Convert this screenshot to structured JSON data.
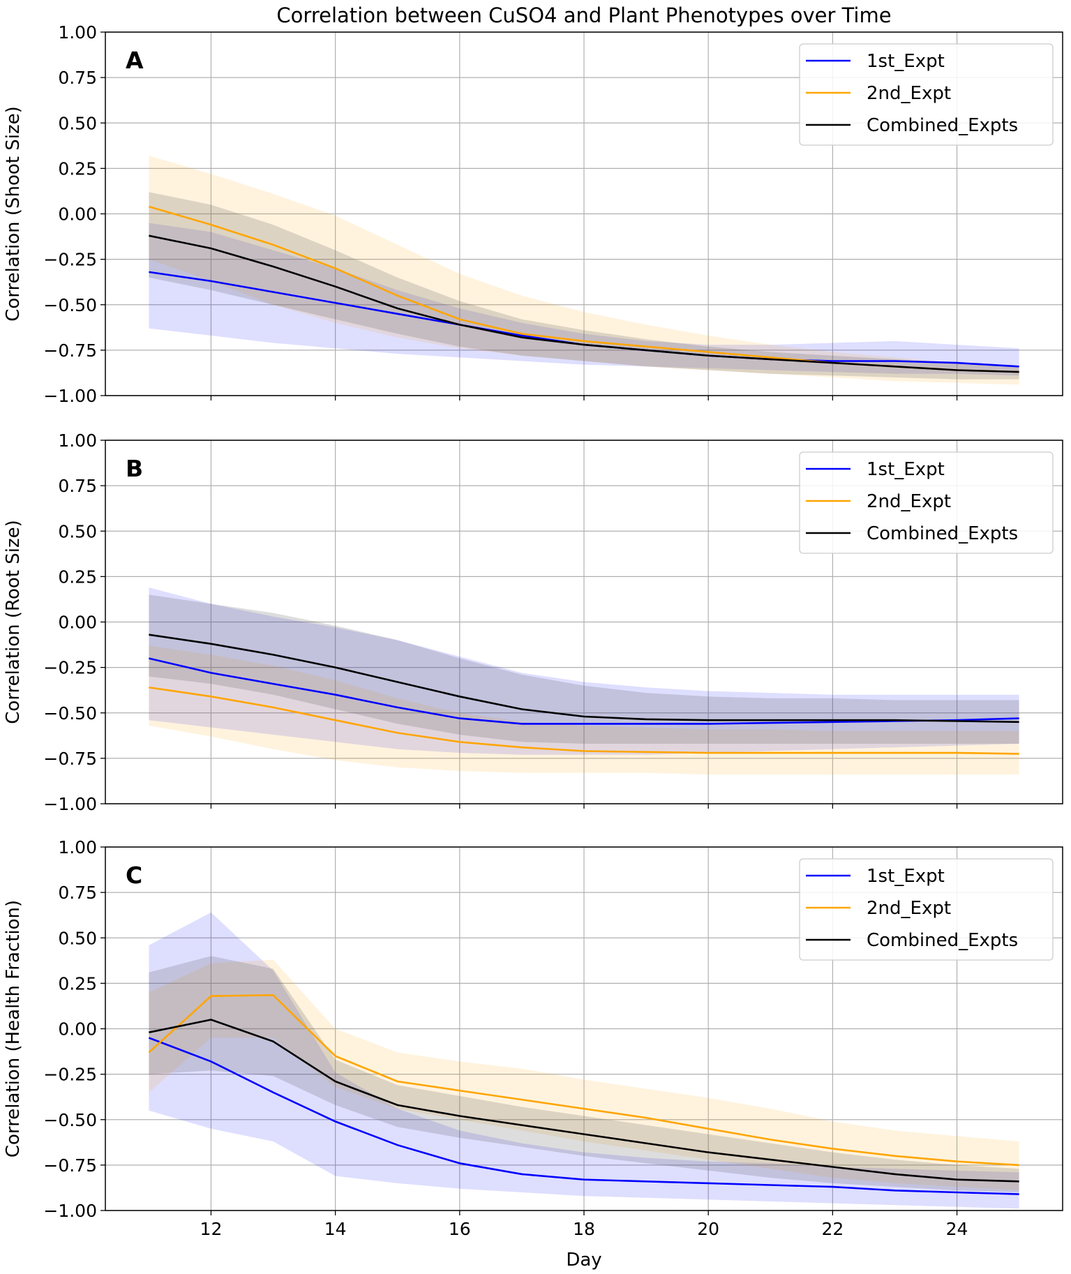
{
  "chart_data": {
    "type": "line",
    "title": "Correlation between CuSO4 and Plant Phenotypes over Time",
    "xlabel": "Day",
    "x": [
      11,
      12,
      13,
      14,
      15,
      16,
      17,
      18,
      19,
      20,
      21,
      22,
      23,
      24,
      25
    ],
    "xlim": [
      10.3,
      25.7
    ],
    "xticks": [
      12,
      14,
      16,
      18,
      20,
      22,
      24
    ],
    "ylim": [
      -1.0,
      1.0
    ],
    "yticks": [
      "1.00",
      "0.75",
      "0.50",
      "0.25",
      "0.00",
      "−0.25",
      "−0.50",
      "−0.75",
      "−1.00"
    ],
    "ytick_values": [
      1.0,
      0.75,
      0.5,
      0.25,
      0.0,
      -0.25,
      -0.5,
      -0.75,
      -1.0
    ],
    "grid": true,
    "legend_placement": "top-right",
    "colors": {
      "1st_Expt": "#0000ff",
      "2nd_Expt": "#ffa500",
      "Combined_Expts": "#000000"
    },
    "panels": [
      {
        "label": "A",
        "ylabel": "Correlation (Shoot Size)",
        "series": [
          {
            "name": "1st_Expt",
            "values": [
              -0.32,
              -0.37,
              -0.43,
              -0.49,
              -0.55,
              -0.61,
              -0.67,
              -0.72,
              -0.75,
              -0.78,
              -0.8,
              -0.81,
              -0.81,
              -0.82,
              -0.84
            ],
            "upper": [
              -0.05,
              -0.1,
              -0.2,
              -0.3,
              -0.42,
              -0.52,
              -0.6,
              -0.66,
              -0.7,
              -0.72,
              -0.72,
              -0.71,
              -0.7,
              -0.72,
              -0.74
            ],
            "lower": [
              -0.63,
              -0.67,
              -0.71,
              -0.74,
              -0.77,
              -0.79,
              -0.81,
              -0.83,
              -0.84,
              -0.85,
              -0.86,
              -0.87,
              -0.88,
              -0.88,
              -0.89
            ]
          },
          {
            "name": "2nd_Expt",
            "values": [
              0.04,
              -0.06,
              -0.17,
              -0.3,
              -0.45,
              -0.58,
              -0.66,
              -0.7,
              -0.73,
              -0.76,
              -0.79,
              -0.82,
              -0.84,
              -0.86,
              -0.87
            ],
            "upper": [
              0.32,
              0.22,
              0.11,
              -0.01,
              -0.17,
              -0.33,
              -0.45,
              -0.54,
              -0.61,
              -0.67,
              -0.72,
              -0.76,
              -0.79,
              -0.82,
              -0.84
            ],
            "lower": [
              -0.25,
              -0.37,
              -0.5,
              -0.6,
              -0.68,
              -0.74,
              -0.78,
              -0.81,
              -0.84,
              -0.86,
              -0.88,
              -0.9,
              -0.92,
              -0.93,
              -0.94
            ]
          },
          {
            "name": "Combined_Expts",
            "values": [
              -0.12,
              -0.19,
              -0.29,
              -0.4,
              -0.52,
              -0.61,
              -0.68,
              -0.72,
              -0.75,
              -0.78,
              -0.8,
              -0.82,
              -0.84,
              -0.86,
              -0.87
            ],
            "upper": [
              0.12,
              0.05,
              -0.06,
              -0.2,
              -0.35,
              -0.48,
              -0.58,
              -0.64,
              -0.69,
              -0.73,
              -0.76,
              -0.78,
              -0.8,
              -0.82,
              -0.84
            ],
            "lower": [
              -0.35,
              -0.42,
              -0.5,
              -0.58,
              -0.66,
              -0.73,
              -0.78,
              -0.81,
              -0.84,
              -0.86,
              -0.88,
              -0.89,
              -0.9,
              -0.91,
              -0.91
            ]
          }
        ]
      },
      {
        "label": "B",
        "ylabel": "Correlation (Root Size)",
        "series": [
          {
            "name": "1st_Expt",
            "values": [
              -0.2,
              -0.28,
              -0.34,
              -0.4,
              -0.47,
              -0.53,
              -0.56,
              -0.56,
              -0.56,
              -0.56,
              -0.555,
              -0.55,
              -0.545,
              -0.54,
              -0.53
            ],
            "upper": [
              0.19,
              0.1,
              0.03,
              -0.03,
              -0.1,
              -0.19,
              -0.28,
              -0.33,
              -0.36,
              -0.38,
              -0.39,
              -0.4,
              -0.4,
              -0.4,
              -0.4
            ],
            "lower": [
              -0.54,
              -0.58,
              -0.62,
              -0.66,
              -0.7,
              -0.72,
              -0.73,
              -0.73,
              -0.73,
              -0.72,
              -0.71,
              -0.7,
              -0.69,
              -0.68,
              -0.67
            ]
          },
          {
            "name": "2nd_Expt",
            "values": [
              -0.36,
              -0.41,
              -0.47,
              -0.54,
              -0.61,
              -0.66,
              -0.69,
              -0.71,
              -0.715,
              -0.72,
              -0.72,
              -0.72,
              -0.72,
              -0.72,
              -0.725
            ],
            "upper": [
              -0.13,
              -0.18,
              -0.24,
              -0.32,
              -0.42,
              -0.5,
              -0.55,
              -0.57,
              -0.58,
              -0.59,
              -0.59,
              -0.6,
              -0.6,
              -0.6,
              -0.6
            ],
            "lower": [
              -0.57,
              -0.63,
              -0.7,
              -0.76,
              -0.8,
              -0.82,
              -0.83,
              -0.83,
              -0.83,
              -0.84,
              -0.84,
              -0.84,
              -0.84,
              -0.84,
              -0.84
            ]
          },
          {
            "name": "Combined_Expts",
            "values": [
              -0.07,
              -0.12,
              -0.18,
              -0.25,
              -0.33,
              -0.41,
              -0.48,
              -0.52,
              -0.535,
              -0.54,
              -0.54,
              -0.54,
              -0.54,
              -0.545,
              -0.55
            ],
            "upper": [
              0.15,
              0.1,
              0.05,
              -0.02,
              -0.1,
              -0.2,
              -0.29,
              -0.35,
              -0.39,
              -0.41,
              -0.42,
              -0.42,
              -0.43,
              -0.43,
              -0.43
            ],
            "lower": [
              -0.3,
              -0.34,
              -0.4,
              -0.48,
              -0.56,
              -0.62,
              -0.66,
              -0.67,
              -0.67,
              -0.67,
              -0.67,
              -0.67,
              -0.67,
              -0.67,
              -0.67
            ]
          }
        ]
      },
      {
        "label": "C",
        "ylabel": "Correlation (Health Fraction)",
        "series": [
          {
            "name": "1st_Expt",
            "values": [
              -0.05,
              -0.18,
              -0.35,
              -0.51,
              -0.64,
              -0.74,
              -0.8,
              -0.83,
              -0.84,
              -0.85,
              -0.86,
              -0.87,
              -0.89,
              -0.9,
              -0.91
            ],
            "upper": [
              0.46,
              0.64,
              0.32,
              -0.24,
              -0.44,
              -0.56,
              -0.63,
              -0.68,
              -0.71,
              -0.73,
              -0.74,
              -0.76,
              -0.77,
              -0.78,
              -0.79
            ],
            "lower": [
              -0.45,
              -0.55,
              -0.62,
              -0.81,
              -0.85,
              -0.88,
              -0.9,
              -0.92,
              -0.93,
              -0.94,
              -0.95,
              -0.96,
              -0.97,
              -0.98,
              -0.99
            ]
          },
          {
            "name": "2nd_Expt",
            "values": [
              -0.13,
              0.18,
              0.185,
              -0.15,
              -0.29,
              -0.34,
              -0.39,
              -0.44,
              -0.49,
              -0.55,
              -0.61,
              -0.66,
              -0.7,
              -0.73,
              -0.75
            ],
            "upper": [
              0.2,
              0.36,
              0.38,
              0.0,
              -0.13,
              -0.18,
              -0.22,
              -0.28,
              -0.33,
              -0.38,
              -0.44,
              -0.51,
              -0.56,
              -0.59,
              -0.62
            ],
            "lower": [
              -0.35,
              -0.05,
              -0.05,
              -0.32,
              -0.44,
              -0.5,
              -0.56,
              -0.62,
              -0.67,
              -0.72,
              -0.77,
              -0.82,
              -0.85,
              -0.87,
              -0.89
            ]
          },
          {
            "name": "Combined_Expts",
            "values": [
              -0.02,
              0.05,
              -0.07,
              -0.29,
              -0.42,
              -0.48,
              -0.53,
              -0.58,
              -0.63,
              -0.68,
              -0.72,
              -0.76,
              -0.8,
              -0.83,
              -0.84
            ],
            "upper": [
              0.31,
              0.4,
              0.33,
              -0.17,
              -0.31,
              -0.37,
              -0.43,
              -0.48,
              -0.53,
              -0.58,
              -0.63,
              -0.68,
              -0.72,
              -0.75,
              -0.77
            ],
            "lower": [
              -0.25,
              -0.23,
              -0.26,
              -0.42,
              -0.54,
              -0.6,
              -0.65,
              -0.7,
              -0.74,
              -0.78,
              -0.82,
              -0.85,
              -0.87,
              -0.89,
              -0.9
            ]
          }
        ]
      }
    ]
  }
}
